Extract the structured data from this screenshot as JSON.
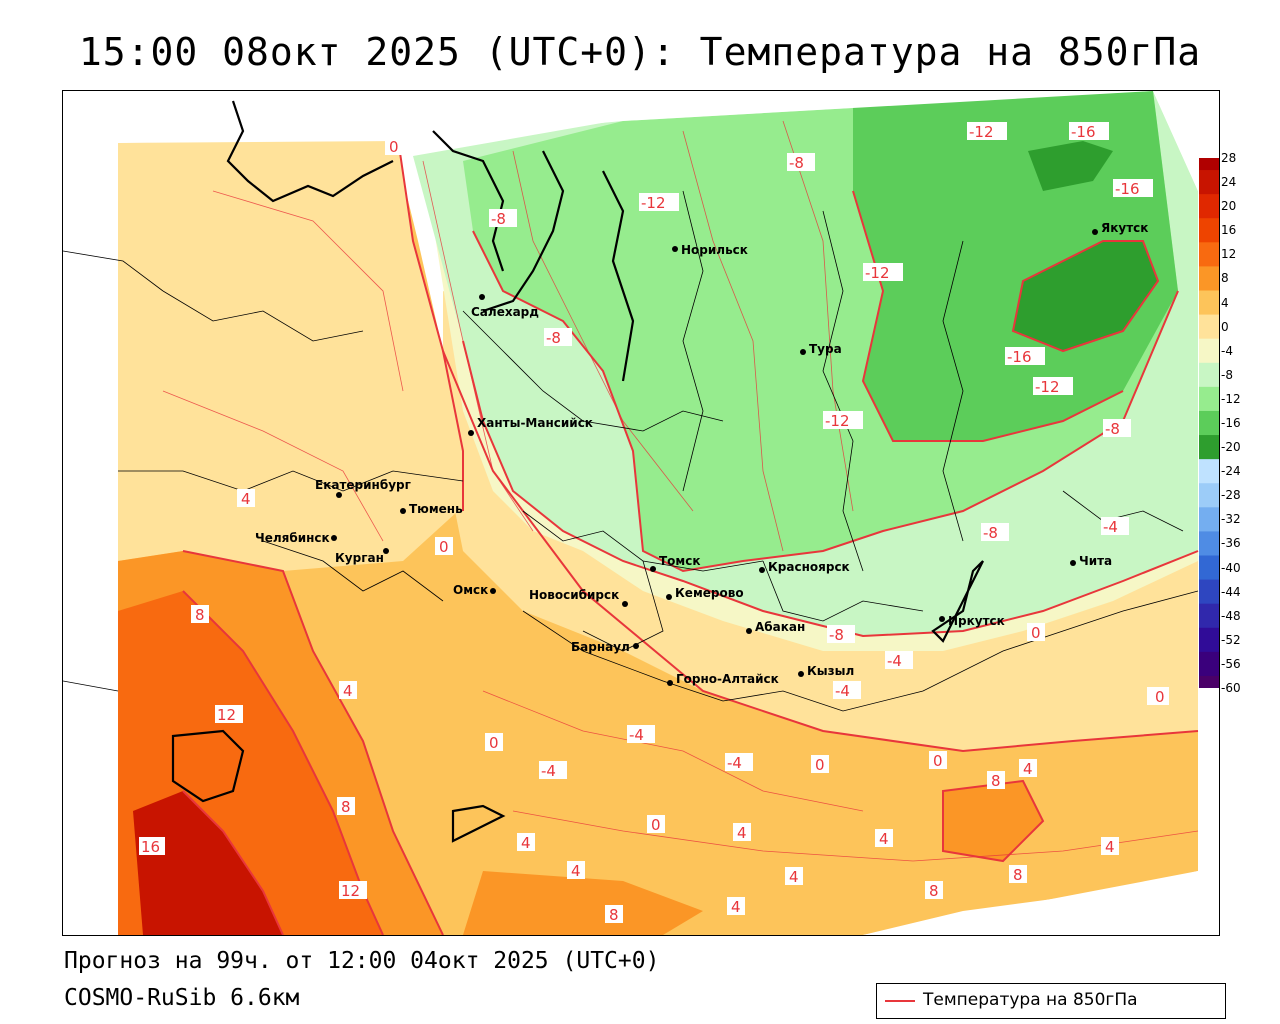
{
  "title": "15:00 08окт 2025 (UTC+0): Температура на 850гПа",
  "forecast_text": "Прогноз на 99ч. от 12:00 04окт 2025 (UTC+0)",
  "model_text": "COSMO-RuSib 6.6км",
  "legend_label": "Температура на 850гПа",
  "colors": {
    "contour": "#e8363b",
    "border": "#000000"
  },
  "colorbar": {
    "ticks": [
      "28",
      "24",
      "20",
      "16",
      "12",
      "8",
      "4",
      "0",
      "-4",
      "-8",
      "-12",
      "-16",
      "-20",
      "-24",
      "-28",
      "-32",
      "-36",
      "-40",
      "-44",
      "-48",
      "-52",
      "-56",
      "-60"
    ],
    "colors": [
      "#b00000",
      "#c81400",
      "#e02800",
      "#ee4400",
      "#f86a10",
      "#fb9626",
      "#fdc45a",
      "#ffe29a",
      "#f6f7c6",
      "#c8f6c4",
      "#96ec8e",
      "#5ccd5a",
      "#2e9e2e",
      "#bfe2ff",
      "#9cccf8",
      "#74aef0",
      "#4f8ce4",
      "#3268d4",
      "#2e46c0",
      "#3028ac",
      "#300c98",
      "#3a007c",
      "#4a0068"
    ]
  },
  "cities": [
    {
      "name": "Салехард"
    },
    {
      "name": "Норильск"
    },
    {
      "name": "Тура"
    },
    {
      "name": "Якутск"
    },
    {
      "name": "Ханты-Мансийск"
    },
    {
      "name": "Екатеринбург"
    },
    {
      "name": "Тюмень"
    },
    {
      "name": "Челябинск"
    },
    {
      "name": "Курган"
    },
    {
      "name": "Омск"
    },
    {
      "name": "Новосибирск"
    },
    {
      "name": "Томск"
    },
    {
      "name": "Кемерово"
    },
    {
      "name": "Красноярск"
    },
    {
      "name": "Абакан"
    },
    {
      "name": "Барнаул"
    },
    {
      "name": "Горно-Алтайск"
    },
    {
      "name": "Кызыл"
    },
    {
      "name": "Иркутск"
    },
    {
      "name": "Чита"
    }
  ],
  "contour_labels": [
    "0",
    "-8",
    "-12",
    "-16",
    "-12",
    "-16",
    "-8",
    "-12",
    "-8",
    "-12",
    "-16",
    "-12",
    "-8",
    "4",
    "0",
    "-8",
    "-4",
    "8",
    "4",
    "12",
    "0",
    "-4",
    "-4",
    "-8",
    "-4",
    "-4",
    "-4",
    "0",
    "0",
    "0",
    "0",
    "8",
    "4",
    "16",
    "8",
    "12",
    "4",
    "4",
    "4",
    "4",
    "0",
    "4",
    "8",
    "4",
    "8",
    "8",
    "4",
    "0"
  ]
}
